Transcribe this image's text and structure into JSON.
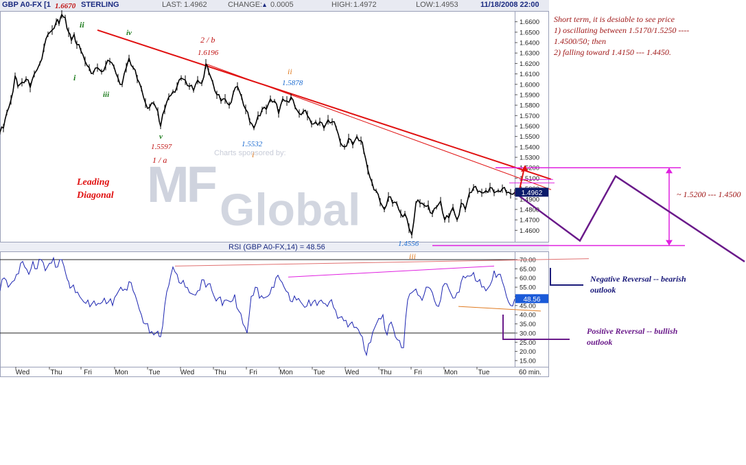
{
  "header": {
    "symbol": "GBP A0-FX [1",
    "name": "STERLING",
    "last_label": "LAST:",
    "last_value": "1.4962",
    "change_label": "CHANGE:",
    "change_value": "0.0005",
    "high_label": "HIGH:",
    "high_value": "1.4972",
    "low_label": "LOW:",
    "low_value": "1.4953",
    "datetime": "11/18/2008 22:00"
  },
  "colors": {
    "price": "#000000",
    "rsi": "#1a23b0",
    "trend_red": "#e01010",
    "magenta": "#e020e0",
    "purple": "#6a1a8a",
    "navy": "#1a1a7a",
    "orange": "#e07a20",
    "wave_green": "#1a7a1a",
    "wave_blue": "#1a6ad0",
    "wave_red": "#c01010",
    "wave_orange": "#e07a20"
  },
  "chart_data": [
    {
      "type": "line",
      "title": "GBP A0-FX STERLING",
      "price_axis_labels": [
        "1.6600",
        "1.6500",
        "1.6400",
        "1.6300",
        "1.6200",
        "1.6100",
        "1.6000",
        "1.5900",
        "1.5800",
        "1.5700",
        "1.5600",
        "1.5500",
        "1.5400",
        "1.5300",
        "1.5200",
        "1.5100",
        "1.5000",
        "1.4900",
        "1.4800",
        "1.4700",
        "1.4600"
      ],
      "ylim": [
        1.4556,
        1.667
      ],
      "x_labels": [
        "Wed",
        "Thu",
        "Fri",
        "Mon",
        "Tue",
        "Wed",
        "Thu",
        "Fri",
        "Mon",
        "Tue",
        "Wed",
        "Thu",
        "Fri",
        "Mon",
        "Tue"
      ],
      "x_unit_label": "60 min.",
      "last_price_label": "1.4962",
      "series": [
        {
          "name": "",
          "x": [
            0,
            5,
            10,
            16,
            22,
            26,
            32,
            38,
            44,
            50,
            58,
            64,
            70,
            76,
            82,
            86,
            90,
            95,
            100,
            104,
            108,
            112,
            118,
            124,
            130,
            136,
            142,
            148,
            154,
            160,
            166,
            172,
            178,
            184,
            188,
            194,
            200,
            206,
            212,
            218,
            224,
            230,
            234,
            240,
            246,
            252,
            258,
            264,
            270,
            276,
            282,
            288,
            294,
            300,
            304,
            310,
            316,
            322,
            328,
            334,
            340,
            346,
            352,
            358,
            364,
            370,
            376,
            382,
            388,
            394,
            400,
            406,
            412,
            418,
            424,
            430,
            436,
            442,
            448,
            454,
            460,
            466,
            472,
            478,
            484,
            490,
            496,
            502,
            508,
            514,
            520,
            526,
            530,
            536,
            542,
            548,
            554,
            560,
            566,
            572,
            578,
            584,
            590,
            596,
            600,
            606,
            612,
            618,
            624,
            630,
            636,
            642,
            648,
            654,
            660,
            666,
            672,
            678,
            684,
            690,
            696,
            702,
            708,
            714,
            720,
            726,
            732,
            738,
            744,
            750
          ],
          "y": [
            1.554,
            1.558,
            1.573,
            1.585,
            1.608,
            1.598,
            1.602,
            1.605,
            1.597,
            1.61,
            1.62,
            1.635,
            1.648,
            1.652,
            1.66,
            1.658,
            1.667,
            1.664,
            1.65,
            1.642,
            1.648,
            1.638,
            1.632,
            1.622,
            1.616,
            1.611,
            1.616,
            1.612,
            1.618,
            1.622,
            1.617,
            1.606,
            1.6,
            1.616,
            1.625,
            1.616,
            1.605,
            1.596,
            1.582,
            1.578,
            1.582,
            1.574,
            1.5597,
            1.576,
            1.588,
            1.593,
            1.598,
            1.606,
            1.604,
            1.598,
            1.594,
            1.604,
            1.601,
            1.6196,
            1.612,
            1.602,
            1.59,
            1.584,
            1.586,
            1.58,
            1.592,
            1.598,
            1.588,
            1.576,
            1.564,
            1.558,
            1.57,
            1.576,
            1.576,
            1.586,
            1.584,
            1.572,
            1.586,
            1.584,
            1.5878,
            1.578,
            1.572,
            1.574,
            1.57,
            1.562,
            1.564,
            1.564,
            1.558,
            1.566,
            1.564,
            1.558,
            1.544,
            1.54,
            1.548,
            1.542,
            1.55,
            1.546,
            1.536,
            1.518,
            1.506,
            1.498,
            1.487,
            1.48,
            1.492,
            1.486,
            1.486,
            1.476,
            1.476,
            1.462,
            1.4556,
            1.486,
            1.486,
            1.484,
            1.484,
            1.476,
            1.482,
            1.488,
            1.47,
            1.472,
            1.482,
            1.47,
            1.486,
            1.48,
            1.496,
            1.501,
            1.497,
            1.496,
            1.498,
            1.501,
            1.496,
            1.498,
            1.5,
            1.496,
            1.495,
            1.4962
          ]
        }
      ],
      "trendlines": [
        {
          "color": "red",
          "points": [
            [
              142,
              1.652
            ],
            [
              803,
              1.509
            ]
          ]
        },
        {
          "color": "red",
          "points": [
            [
              300,
              1.6196
            ],
            [
              803,
              1.499
            ]
          ]
        }
      ],
      "projection": {
        "color": "purple",
        "points": [
          [
            750,
            1.4962
          ],
          [
            845,
            1.45
          ],
          [
            897,
            1.512
          ],
          [
            1085,
            1.43
          ]
        ]
      },
      "range_annotation": {
        "label": "~ 1.5200 --- 1.4500",
        "upper": 1.52,
        "lower": 1.45
      },
      "wave_labels": [
        {
          "text": "1.6670",
          "color": "wave_red"
        },
        {
          "text": "ii",
          "color": "wave_green"
        },
        {
          "text": "i",
          "color": "wave_green"
        },
        {
          "text": "iv",
          "color": "wave_green"
        },
        {
          "text": "iii",
          "color": "wave_green"
        },
        {
          "text": "v",
          "color": "wave_green"
        },
        {
          "text": "1.5597",
          "color": "wave_red"
        },
        {
          "text": "1 / a",
          "color": "wave_red"
        },
        {
          "text": "2 / b",
          "color": "wave_red"
        },
        {
          "text": "1.6196",
          "color": "wave_red"
        },
        {
          "text": "ii",
          "color": "wave_orange"
        },
        {
          "text": "1.5878",
          "color": "wave_blue"
        },
        {
          "text": "1.5532",
          "color": "wave_blue"
        },
        {
          "text": "i",
          "color": "wave_orange"
        },
        {
          "text": "1.4556",
          "color": "wave_blue"
        },
        {
          "text": "iii",
          "color": "wave_orange"
        }
      ]
    },
    {
      "type": "line",
      "title": "RSI (GBP A0-FX,14) = 48.56",
      "rsi_axis_labels": [
        "70.00",
        "65.00",
        "60.00",
        "55.00",
        "50.00",
        "45.00",
        "40.00",
        "35.00",
        "30.00",
        "25.00",
        "20.00",
        "15.00"
      ],
      "ylim": [
        15,
        73
      ],
      "ref_lines": [
        70,
        30
      ],
      "last_rsi_label": "48.56",
      "series": [
        {
          "name": "",
          "x": [
            0,
            6,
            12,
            18,
            24,
            30,
            36,
            42,
            48,
            54,
            60,
            66,
            72,
            78,
            84,
            90,
            96,
            100,
            104,
            110,
            116,
            122,
            128,
            134,
            140,
            146,
            152,
            158,
            164,
            170,
            176,
            182,
            188,
            194,
            200,
            206,
            212,
            218,
            224,
            230,
            234,
            240,
            246,
            252,
            258,
            264,
            270,
            276,
            282,
            288,
            294,
            300,
            306,
            312,
            318,
            324,
            330,
            336,
            342,
            348,
            354,
            360,
            366,
            372,
            378,
            384,
            390,
            396,
            402,
            408,
            414,
            420,
            426,
            432,
            438,
            444,
            450,
            456,
            462,
            468,
            474,
            480,
            486,
            492,
            498,
            504,
            510,
            516,
            522,
            528,
            534,
            540,
            546,
            552,
            558,
            564,
            570,
            576,
            582,
            588,
            594,
            600,
            606,
            612,
            618,
            624,
            630,
            636,
            642,
            648,
            654,
            660,
            666,
            672,
            678,
            684,
            690,
            696,
            702,
            708,
            714,
            720,
            726,
            732,
            738,
            744,
            750
          ],
          "y": [
            53,
            60,
            55,
            58,
            62,
            68,
            66,
            62,
            69,
            65,
            70,
            64,
            68,
            71,
            66,
            70,
            62,
            58,
            55,
            52,
            50,
            47,
            48,
            46,
            45,
            46,
            49,
            47,
            45,
            51,
            55,
            54,
            58,
            53,
            47,
            40,
            35,
            30,
            29,
            31,
            28,
            45,
            56,
            66,
            62,
            57,
            55,
            52,
            51,
            53,
            59,
            55,
            57,
            50,
            49,
            45,
            48,
            47,
            51,
            42,
            35,
            30,
            50,
            55,
            49,
            49,
            50,
            55,
            60,
            59,
            55,
            52,
            47,
            48,
            47,
            44,
            48,
            47,
            45,
            48,
            46,
            47,
            44,
            38,
            39,
            37,
            35,
            33,
            32,
            28,
            18,
            25,
            33,
            38,
            40,
            29,
            36,
            28,
            26,
            22,
            48,
            52,
            54,
            50,
            51,
            55,
            52,
            45,
            48,
            57,
            54,
            49,
            52,
            58,
            60,
            61,
            63,
            58,
            55,
            53,
            56,
            64,
            62,
            58,
            50,
            45,
            48.56
          ]
        }
      ],
      "trendlines": [
        {
          "label": "",
          "color": "orange",
          "points": [
            [
              255,
              66.5
            ],
            [
              858,
              70.5
            ]
          ]
        },
        {
          "label": "",
          "color": "magenta",
          "points": [
            [
              420,
              60.5
            ],
            [
              720,
              66.5
            ]
          ]
        },
        {
          "label": "",
          "color": "orange",
          "points": [
            [
              668,
              44.5
            ],
            [
              788,
              42.0
            ]
          ]
        }
      ],
      "annotations": [
        {
          "text": "Negative Reversal -- bearish outlook",
          "color": "navy"
        },
        {
          "text": "Positive Reversal -- bullish outlook",
          "color": "purple"
        }
      ]
    }
  ],
  "annotations": {
    "leading_diagonal": "Leading Diagonal",
    "watermark_sponsor": "Charts sponsored by:",
    "watermark_brand_1": "MF",
    "watermark_brand_2": "Global",
    "note_lines": [
      "Short term, it is desiable to see  price",
      "1) oscillating between 1.5170/1.5250  ----",
      "1.4500/50; then",
      "2)  falling toward 1.4150 --- 1.4450."
    ],
    "range_label": "~ 1.5200 --- 1.4500",
    "negative_reversal_line1": "Negative Reversal -- bearish",
    "negative_reversal_line2": "outlook",
    "positive_reversal_line1": "Positive Reversal -- bullish",
    "positive_reversal_line2": "outlook"
  }
}
